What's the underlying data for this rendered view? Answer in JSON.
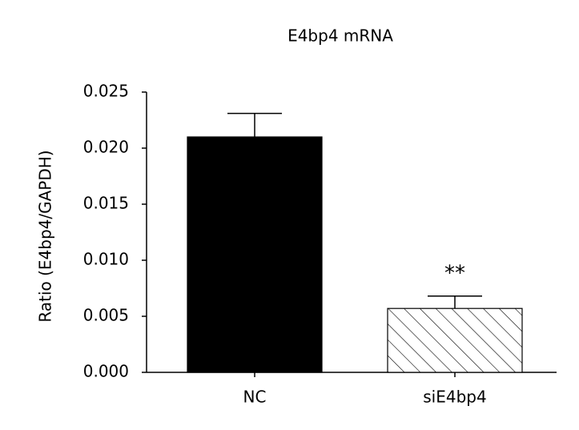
{
  "chart_data": {
    "type": "bar",
    "title": "E4bp4 mRNA",
    "y_label": "Ratio (E4bp4/GAPDH)",
    "categories": [
      "NC",
      "siE4bp4"
    ],
    "values": [
      0.021,
      0.0057
    ],
    "errors": [
      0.0021,
      0.0011
    ],
    "colors": [
      "#000000",
      "#ffffff"
    ],
    "hatch": [
      false,
      true
    ],
    "annotation": "**",
    "ylim": [
      0,
      0.025
    ],
    "yticks": [
      {
        "value": 0,
        "label": "0.000"
      },
      {
        "value": 0.005,
        "label": "0.005"
      },
      {
        "value": 0.01,
        "label": "0.010"
      },
      {
        "value": 0.015,
        "label": "0.015"
      },
      {
        "value": 0.02,
        "label": "0.020"
      },
      {
        "value": 0.025,
        "label": "0.025"
      }
    ],
    "grid": false
  }
}
